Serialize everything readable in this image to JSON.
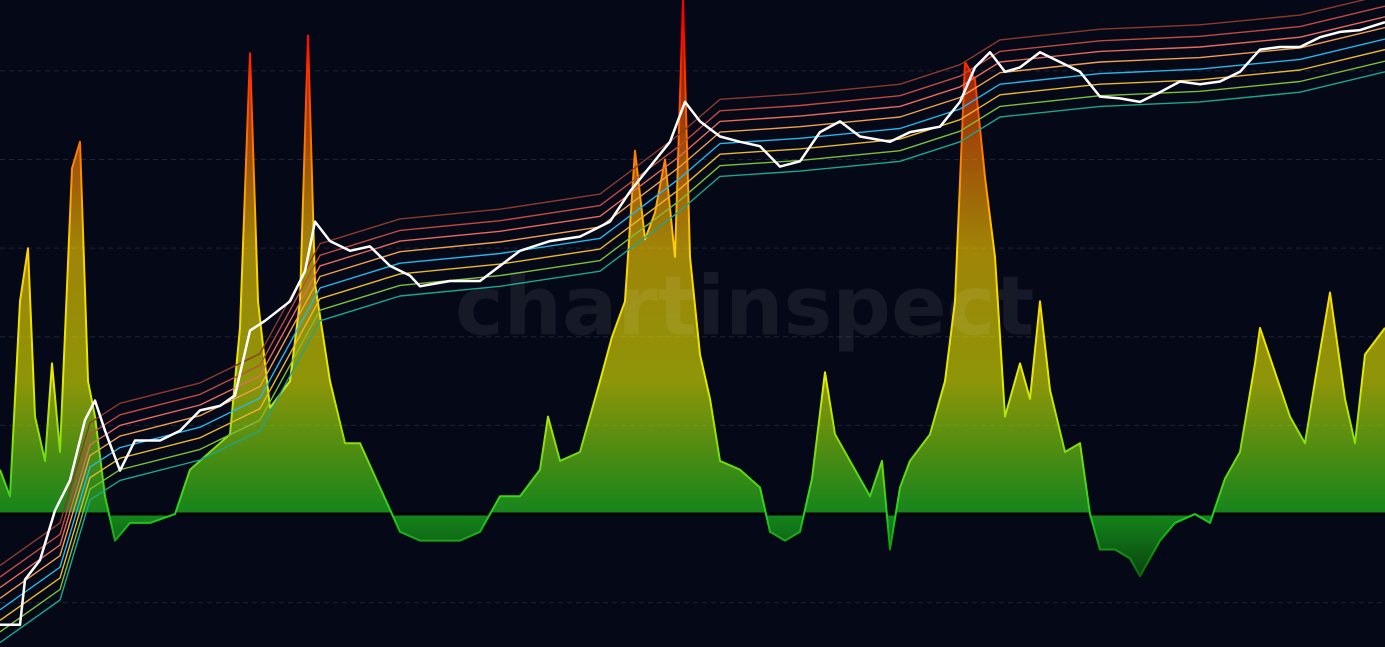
{
  "chart_data": {
    "type": "line",
    "watermark": "chartinspect",
    "xlim": [
      0,
      1385
    ],
    "ylim": [
      -1.5,
      5.8
    ],
    "yticks": [
      -1,
      0,
      1,
      2,
      3,
      4,
      5
    ],
    "grid": true,
    "background": "#050816",
    "series": [
      {
        "type": "area",
        "gradient": [
          {
            "value": -0.7,
            "color": "#0a6a0a"
          },
          {
            "value": 0,
            "color": "#1fd21f"
          },
          {
            "value": 1.5,
            "color": "#e2ec00"
          },
          {
            "value": 3,
            "color": "#ffd000"
          },
          {
            "value": 4.5,
            "color": "#ff5a00"
          },
          {
            "value": 5.5,
            "color": "#ff0000"
          }
        ],
        "x": [
          0,
          10,
          20,
          28,
          35,
          45,
          52,
          60,
          72,
          80,
          88,
          95,
          105,
          115,
          130,
          150,
          175,
          190,
          210,
          230,
          240,
          250,
          258,
          270,
          290,
          300,
          308,
          315,
          330,
          345,
          360,
          380,
          400,
          420,
          440,
          460,
          480,
          500,
          520,
          540,
          548,
          560,
          580,
          600,
          612,
          625,
          635,
          645,
          655,
          665,
          675,
          683,
          690,
          700,
          710,
          720,
          740,
          760,
          770,
          785,
          800,
          812,
          825,
          835,
          850,
          870,
          882,
          890,
          900,
          910,
          930,
          945,
          955,
          965,
          975,
          985,
          995,
          1005,
          1020,
          1030,
          1040,
          1050,
          1065,
          1080,
          1090,
          1100,
          1115,
          1130,
          1140,
          1160,
          1175,
          1195,
          1210,
          1225,
          1240,
          1255,
          1260,
          1275,
          1290,
          1305,
          1315,
          1330,
          1345,
          1355,
          1365,
          1385
        ],
        "values": [
          0.5,
          0.2,
          2.4,
          3.0,
          1.1,
          0.6,
          1.7,
          0.7,
          3.9,
          4.2,
          1.5,
          1.1,
          0.2,
          -0.3,
          -0.1,
          -0.1,
          0.0,
          0.5,
          0.7,
          0.9,
          2.1,
          5.2,
          2.4,
          1.2,
          1.5,
          2.4,
          5.4,
          2.6,
          1.5,
          0.8,
          0.8,
          0.3,
          -0.2,
          -0.3,
          -0.3,
          -0.3,
          -0.2,
          0.2,
          0.2,
          0.5,
          1.1,
          0.6,
          0.7,
          1.5,
          2.0,
          2.4,
          4.1,
          3.1,
          3.4,
          4.0,
          2.9,
          5.8,
          2.9,
          1.8,
          1.3,
          0.6,
          0.5,
          0.3,
          -0.2,
          -0.3,
          -0.2,
          0.4,
          1.6,
          0.9,
          0.6,
          0.2,
          0.6,
          -0.4,
          0.3,
          0.6,
          0.9,
          1.5,
          2.4,
          5.1,
          4.9,
          3.8,
          2.9,
          1.1,
          1.7,
          1.3,
          2.4,
          1.4,
          0.7,
          0.8,
          0.0,
          -0.4,
          -0.4,
          -0.5,
          -0.7,
          -0.3,
          -0.1,
          0.0,
          -0.1,
          0.4,
          0.7,
          1.7,
          2.1,
          1.6,
          1.1,
          0.8,
          1.5,
          2.5,
          1.3,
          0.8,
          1.8,
          2.1
        ]
      },
      {
        "color": "#1aa88c",
        "x": [
          0,
          60,
          90,
          120,
          200,
          260,
          320,
          400,
          500,
          600,
          680,
          720,
          800,
          900,
          960,
          1000,
          1100,
          1200,
          1300,
          1385
        ],
        "values": [
          -1.45,
          -0.97,
          0.16,
          0.38,
          0.61,
          0.94,
          2.18,
          2.46,
          2.57,
          2.74,
          3.42,
          3.81,
          3.87,
          3.98,
          4.2,
          4.48,
          4.6,
          4.65,
          4.76,
          4.99
        ]
      },
      {
        "color": "#7cbf3a",
        "x": [
          0,
          60,
          90,
          120,
          200,
          260,
          320,
          400,
          500,
          600,
          680,
          720,
          800,
          900,
          960,
          1000,
          1100,
          1200,
          1300,
          1385
        ],
        "values": [
          -1.33,
          -0.85,
          0.28,
          0.5,
          0.73,
          1.06,
          2.3,
          2.58,
          2.69,
          2.86,
          3.54,
          3.93,
          3.99,
          4.1,
          4.32,
          4.6,
          4.72,
          4.77,
          4.88,
          5.11
        ]
      },
      {
        "color": "#e8b830",
        "x": [
          0,
          60,
          90,
          120,
          200,
          260,
          320,
          400,
          500,
          600,
          680,
          720,
          800,
          900,
          960,
          1000,
          1100,
          1200,
          1300,
          1385
        ],
        "values": [
          -1.2,
          -0.72,
          0.41,
          0.63,
          0.86,
          1.19,
          2.43,
          2.71,
          2.82,
          2.99,
          3.67,
          4.06,
          4.12,
          4.23,
          4.45,
          4.73,
          4.85,
          4.9,
          5.01,
          5.24
        ]
      },
      {
        "color": "#29b6e8",
        "x": [
          0,
          60,
          90,
          120,
          200,
          260,
          320,
          400,
          500,
          600,
          680,
          720,
          800,
          900,
          960,
          1000,
          1100,
          1200,
          1300,
          1385
        ],
        "values": [
          -1.08,
          -0.6,
          0.53,
          0.75,
          0.98,
          1.31,
          2.55,
          2.83,
          2.94,
          3.11,
          3.79,
          4.18,
          4.24,
          4.35,
          4.57,
          4.85,
          4.97,
          5.02,
          5.13,
          5.36
        ]
      },
      {
        "color": "#f0a050",
        "x": [
          0,
          60,
          90,
          120,
          200,
          260,
          320,
          400,
          500,
          600,
          680,
          720,
          800,
          900,
          960,
          1000,
          1100,
          1200,
          1300,
          1385
        ],
        "values": [
          -0.95,
          -0.47,
          0.66,
          0.88,
          1.11,
          1.44,
          2.68,
          2.96,
          3.07,
          3.24,
          3.92,
          4.31,
          4.37,
          4.48,
          4.7,
          4.98,
          5.1,
          5.15,
          5.26,
          5.49
        ]
      },
      {
        "color": "#e86a5a",
        "x": [
          0,
          60,
          90,
          120,
          200,
          260,
          320,
          400,
          500,
          600,
          680,
          720,
          800,
          900,
          960,
          1000,
          1100,
          1200,
          1300,
          1385
        ],
        "values": [
          -0.83,
          -0.35,
          0.78,
          1.0,
          1.23,
          1.56,
          2.8,
          3.08,
          3.19,
          3.36,
          4.04,
          4.43,
          4.49,
          4.6,
          4.82,
          5.1,
          5.22,
          5.27,
          5.38,
          5.61
        ]
      },
      {
        "color": "#c04a40",
        "x": [
          0,
          60,
          90,
          120,
          200,
          260,
          320,
          400,
          500,
          600,
          680,
          720,
          800,
          900,
          960,
          1000,
          1100,
          1200,
          1300,
          1385
        ],
        "values": [
          -0.71,
          -0.23,
          0.9,
          1.12,
          1.35,
          1.68,
          2.92,
          3.2,
          3.31,
          3.48,
          4.16,
          4.55,
          4.61,
          4.72,
          4.94,
          5.22,
          5.34,
          5.39,
          5.5,
          5.73
        ]
      },
      {
        "color": "#8a3a2a",
        "x": [
          0,
          60,
          90,
          120,
          200,
          260,
          320,
          400,
          500,
          600,
          680,
          720,
          800,
          900,
          960,
          1000,
          1100,
          1200,
          1300,
          1385
        ],
        "values": [
          -0.58,
          -0.1,
          1.03,
          1.25,
          1.48,
          1.81,
          3.05,
          3.33,
          3.44,
          3.61,
          4.29,
          4.68,
          4.74,
          4.85,
          5.07,
          5.35,
          5.47,
          5.52,
          5.63,
          5.86
        ]
      },
      {
        "color": "#ffffff",
        "width": 2.5,
        "x": [
          0,
          20,
          25,
          40,
          55,
          70,
          85,
          95,
          105,
          120,
          135,
          160,
          180,
          200,
          220,
          235,
          250,
          265,
          290,
          305,
          315,
          330,
          350,
          370,
          390,
          410,
          420,
          450,
          480,
          500,
          520,
          550,
          580,
          610,
          630,
          650,
          670,
          685,
          700,
          720,
          740,
          760,
          780,
          800,
          820,
          840,
          860,
          890,
          910,
          940,
          960,
          975,
          990,
          1005,
          1020,
          1040,
          1060,
          1080,
          1100,
          1120,
          1140,
          1160,
          1180,
          1200,
          1220,
          1240,
          1260,
          1280,
          1300,
          1320,
          1340,
          1360,
          1385
        ],
        "values": [
          -1.25,
          -1.25,
          -0.74,
          -0.52,
          0.04,
          0.38,
          1.06,
          1.28,
          0.94,
          0.49,
          0.83,
          0.83,
          0.94,
          1.17,
          1.22,
          1.34,
          2.07,
          2.18,
          2.4,
          2.74,
          3.3,
          3.08,
          2.97,
          3.02,
          2.8,
          2.69,
          2.57,
          2.63,
          2.63,
          2.8,
          2.97,
          3.08,
          3.13,
          3.3,
          3.64,
          3.92,
          4.2,
          4.65,
          4.43,
          4.26,
          4.2,
          4.15,
          3.92,
          3.98,
          4.31,
          4.43,
          4.26,
          4.2,
          4.31,
          4.37,
          4.65,
          5.04,
          5.21,
          4.99,
          5.04,
          5.21,
          5.1,
          4.99,
          4.71,
          4.69,
          4.65,
          4.76,
          4.88,
          4.85,
          4.88,
          4.99,
          5.24,
          5.27,
          5.27,
          5.38,
          5.44,
          5.46,
          5.55
        ]
      }
    ]
  }
}
